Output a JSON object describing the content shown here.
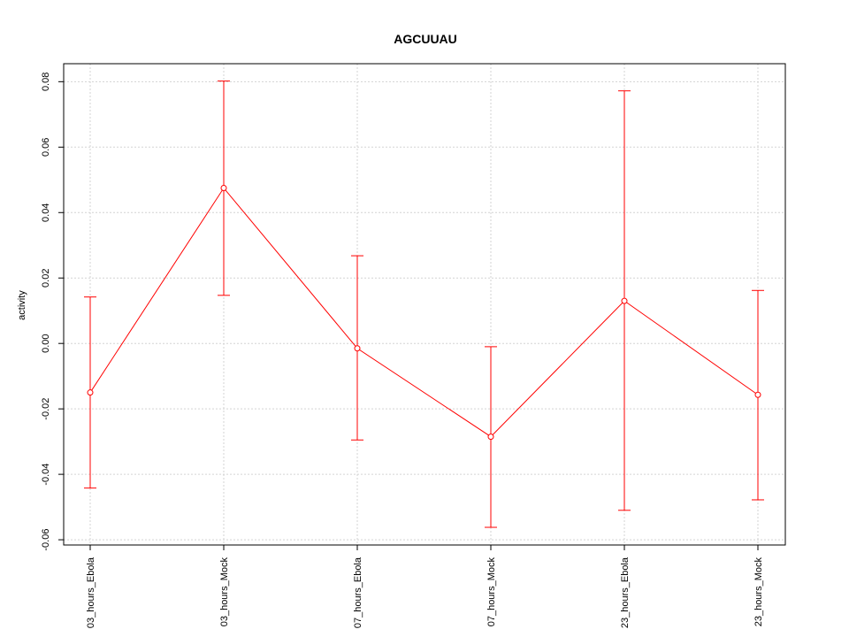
{
  "chart_data": {
    "type": "line",
    "title": "AGCUUAU",
    "xlabel": "",
    "ylabel": "activity",
    "categories": [
      "03_hours_Ebola",
      "03_hours_Mock",
      "07_hours_Ebola",
      "07_hours_Mock",
      "23_hours_Ebola",
      "23_hours_Mock"
    ],
    "series": [
      {
        "values": [
          -0.015,
          0.0475,
          -0.0015,
          -0.0285,
          0.013,
          -0.0157
        ],
        "lower": [
          -0.0442,
          0.0147,
          -0.0295,
          -0.0562,
          -0.051,
          -0.0478
        ],
        "upper": [
          0.0142,
          0.0802,
          0.0268,
          -0.001,
          0.0772,
          0.0162
        ]
      }
    ],
    "yticks": [
      -0.06,
      -0.04,
      -0.02,
      0.0,
      0.02,
      0.04,
      0.06,
      0.08
    ],
    "ytick_labels": [
      "-0.06",
      "-0.04",
      "-0.02",
      "0.00",
      "0.02",
      "0.04",
      "0.06",
      "0.08"
    ],
    "ylim": [
      -0.0616,
      0.0855
    ],
    "grid": true,
    "colors": {
      "series": "#ff0000",
      "grid": "#d3d3d3",
      "axis": "#000000"
    }
  }
}
